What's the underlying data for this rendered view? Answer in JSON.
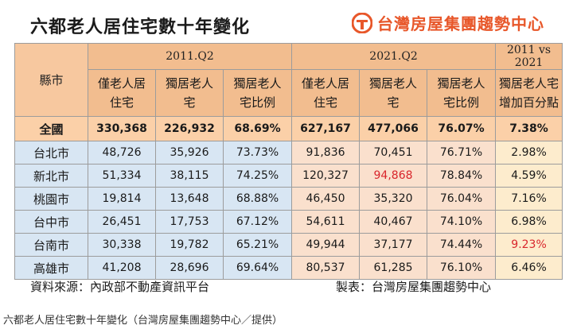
{
  "title": "六都老人居住宅數十年變化",
  "brand": {
    "name": "台灣房屋集團趨勢中心",
    "logo_icon": "taiwan-house-logo-icon",
    "color": "#e8572a"
  },
  "table": {
    "county_header": "縣市",
    "group_2011": "2011.Q2",
    "group_2021": "2021.Q2",
    "group_cmp": "2011 vs 2021",
    "col_elder_only": [
      "僅老人居",
      "住宅"
    ],
    "col_alone": [
      "獨居老人",
      "宅"
    ],
    "col_ratio": [
      "獨居老人",
      "宅比例"
    ],
    "col_cmp": [
      "獨居老人宅",
      "增加百分點"
    ],
    "rows": [
      {
        "county": "全國",
        "e2011": "330,368",
        "a2011": "226,932",
        "r2011": "68.69%",
        "e2021": "627,167",
        "a2021": "477,066",
        "r2021": "76.07%",
        "diff": "7.38%"
      },
      {
        "county": "台北市",
        "e2011": "48,726",
        "a2011": "35,926",
        "r2011": "73.73%",
        "e2021": "91,836",
        "a2021": "70,451",
        "r2021": "76.71%",
        "diff": "2.98%"
      },
      {
        "county": "新北市",
        "e2011": "51,334",
        "a2011": "38,115",
        "r2011": "74.25%",
        "e2021": "120,327",
        "a2021": "94,868",
        "r2021": "78.84%",
        "diff": "4.59%"
      },
      {
        "county": "桃園市",
        "e2011": "19,814",
        "a2011": "13,648",
        "r2011": "68.88%",
        "e2021": "46,450",
        "a2021": "35,320",
        "r2021": "76.04%",
        "diff": "7.16%"
      },
      {
        "county": "台中市",
        "e2011": "26,451",
        "a2011": "17,753",
        "r2011": "67.12%",
        "e2021": "54,611",
        "a2021": "40,467",
        "r2021": "74.10%",
        "diff": "6.98%"
      },
      {
        "county": "台南市",
        "e2011": "30,338",
        "a2011": "19,782",
        "r2011": "65.21%",
        "e2021": "49,944",
        "a2021": "37,177",
        "r2021": "74.44%",
        "diff": "9.23%"
      },
      {
        "county": "高雄市",
        "e2011": "41,208",
        "a2011": "28,696",
        "r2011": "69.64%",
        "e2021": "80,537",
        "a2021": "61,285",
        "r2021": "76.10%",
        "diff": "6.46%"
      }
    ],
    "highlight_color": "#d9262c"
  },
  "footer": {
    "source": "資料來源：內政部不動產資訊平台",
    "maker": "製表：台灣房屋集團趨勢中心"
  },
  "caption": "六都老人居住宅數十年變化（台灣房屋集團趨勢中心／提供）"
}
